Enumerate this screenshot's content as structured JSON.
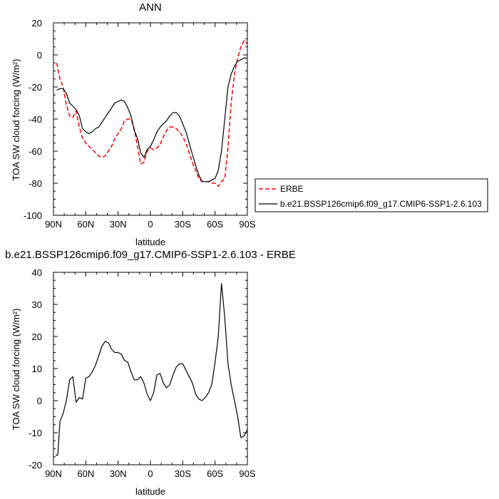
{
  "chart_data": [
    {
      "type": "line",
      "title": "ANN",
      "xlabel": "latitude",
      "ylabel": "TOA SW cloud forcing (W/m²)",
      "x_ticks": [
        "90N",
        "60N",
        "30N",
        "0",
        "30S",
        "60S",
        "90S"
      ],
      "x_tick_values": [
        90,
        60,
        30,
        0,
        -30,
        -60,
        -90
      ],
      "xlim": [
        90,
        -90
      ],
      "ylim": [
        -100,
        20
      ],
      "y_ticks": [
        20,
        0,
        -20,
        -40,
        -60,
        -80,
        -100
      ],
      "y_tick_labels": [
        "20",
        "0",
        "-20",
        "-40",
        "-60",
        "-80",
        "-100"
      ],
      "grid": false,
      "legend_position": "outside-right",
      "series": [
        {
          "name": "ERBE",
          "color": "#ff0000",
          "dash": true,
          "x": [
            87,
            84,
            81,
            78,
            75,
            72,
            69,
            66,
            63,
            60,
            57,
            54,
            51,
            48,
            45,
            42,
            39,
            36,
            33,
            30,
            27,
            24,
            21,
            18,
            15,
            12,
            9,
            6,
            3,
            0,
            -3,
            -6,
            -9,
            -12,
            -15,
            -18,
            -21,
            -24,
            -27,
            -30,
            -33,
            -36,
            -39,
            -42,
            -45,
            -48,
            -51,
            -54,
            -57,
            -60,
            -63,
            -66,
            -69,
            -72,
            -75,
            -78,
            -81,
            -84,
            -87,
            -90
          ],
          "y": [
            -5,
            -15,
            -20,
            -31,
            -38,
            -39,
            -35,
            -45,
            -52,
            -55,
            -57,
            -59,
            -61,
            -63,
            -64,
            -63,
            -60,
            -57,
            -52,
            -49,
            -46,
            -41,
            -40,
            -40,
            -46,
            -57,
            -68,
            -67,
            -60,
            -58,
            -59,
            -58,
            -56,
            -51,
            -47,
            -45,
            -45,
            -46,
            -48,
            -51,
            -55,
            -61,
            -67,
            -72,
            -77,
            -79,
            -79,
            -79,
            -80,
            -80,
            -82,
            -79,
            -77,
            -58,
            -30,
            -12,
            -2,
            5,
            9,
            7
          ]
        },
        {
          "name": "b.e21.BSSP126cmip6.f09_g17.CMIP6-SSP1-2.6.103",
          "color": "#000000",
          "dash": false,
          "x": [
            87,
            84,
            81,
            78,
            75,
            72,
            69,
            66,
            63,
            60,
            57,
            54,
            51,
            48,
            45,
            42,
            39,
            36,
            33,
            30,
            27,
            24,
            21,
            18,
            15,
            12,
            9,
            6,
            3,
            0,
            -3,
            -6,
            -9,
            -12,
            -15,
            -18,
            -21,
            -24,
            -27,
            -30,
            -33,
            -36,
            -39,
            -42,
            -45,
            -48,
            -51,
            -54,
            -57,
            -60,
            -63,
            -66,
            -69,
            -72,
            -75,
            -78,
            -81,
            -84,
            -87,
            -90
          ],
          "y": [
            -22,
            -21,
            -21,
            -24,
            -30,
            -32,
            -34,
            -38,
            -46,
            -48,
            -49,
            -48,
            -46,
            -45,
            -42,
            -39,
            -36,
            -33,
            -30,
            -29,
            -28,
            -29,
            -33,
            -38,
            -47,
            -52,
            -61,
            -64,
            -59,
            -57,
            -53,
            -48,
            -45,
            -43,
            -41,
            -38,
            -36,
            -36,
            -38,
            -43,
            -48,
            -55,
            -62,
            -69,
            -75,
            -79,
            -79,
            -79,
            -78,
            -77,
            -72,
            -60,
            -40,
            -20,
            -12,
            -7,
            -4,
            -3,
            -2,
            -2
          ]
        }
      ]
    },
    {
      "type": "line",
      "title": "b.e21.BSSP126cmip6.f09_g17.CMIP6-SSP1-2.6.103 - ERBE",
      "xlabel": "latitude",
      "ylabel": "TOA SW cloud forcing (W/m²)",
      "x_ticks": [
        "90N",
        "60N",
        "30N",
        "0",
        "30S",
        "60S",
        "90S"
      ],
      "x_tick_values": [
        90,
        60,
        30,
        0,
        -30,
        -60,
        -90
      ],
      "xlim": [
        90,
        -90
      ],
      "ylim": [
        -20,
        40
      ],
      "y_ticks": [
        40,
        30,
        20,
        10,
        0,
        -10,
        -20
      ],
      "y_tick_labels": [
        "40",
        "30",
        "20",
        "10",
        "0",
        "-10",
        "-20"
      ],
      "grid": false,
      "series": [
        {
          "color": "#000000",
          "dash": false,
          "x": [
            88,
            86,
            84,
            81,
            78,
            75,
            72,
            69,
            66,
            63,
            60,
            57,
            54,
            51,
            48,
            45,
            42,
            39,
            36,
            33,
            30,
            27,
            24,
            21,
            18,
            15,
            12,
            9,
            6,
            3,
            0,
            -3,
            -6,
            -9,
            -12,
            -15,
            -18,
            -21,
            -24,
            -27,
            -30,
            -33,
            -36,
            -39,
            -42,
            -45,
            -48,
            -51,
            -54,
            -57,
            -60,
            -63,
            -66,
            -69,
            -72,
            -75,
            -78,
            -81,
            -84,
            -87,
            -90
          ],
          "y": [
            -17,
            -17,
            -6.5,
            -4,
            0,
            6.5,
            7.5,
            -0.5,
            1,
            0.5,
            7,
            7.5,
            9,
            11,
            14,
            17,
            18.5,
            18,
            16,
            15,
            15,
            14.5,
            12.5,
            12,
            9,
            6.5,
            6.5,
            7.5,
            5.5,
            2,
            0,
            2.5,
            8,
            8.5,
            5.5,
            4,
            5,
            8,
            10.5,
            11.5,
            11.5,
            9.5,
            7.5,
            5.5,
            2,
            0.5,
            0,
            1,
            2.5,
            5,
            12,
            20,
            36.5,
            26,
            11.5,
            5,
            0,
            -5,
            -11.5,
            -11,
            -9
          ]
        }
      ]
    }
  ]
}
